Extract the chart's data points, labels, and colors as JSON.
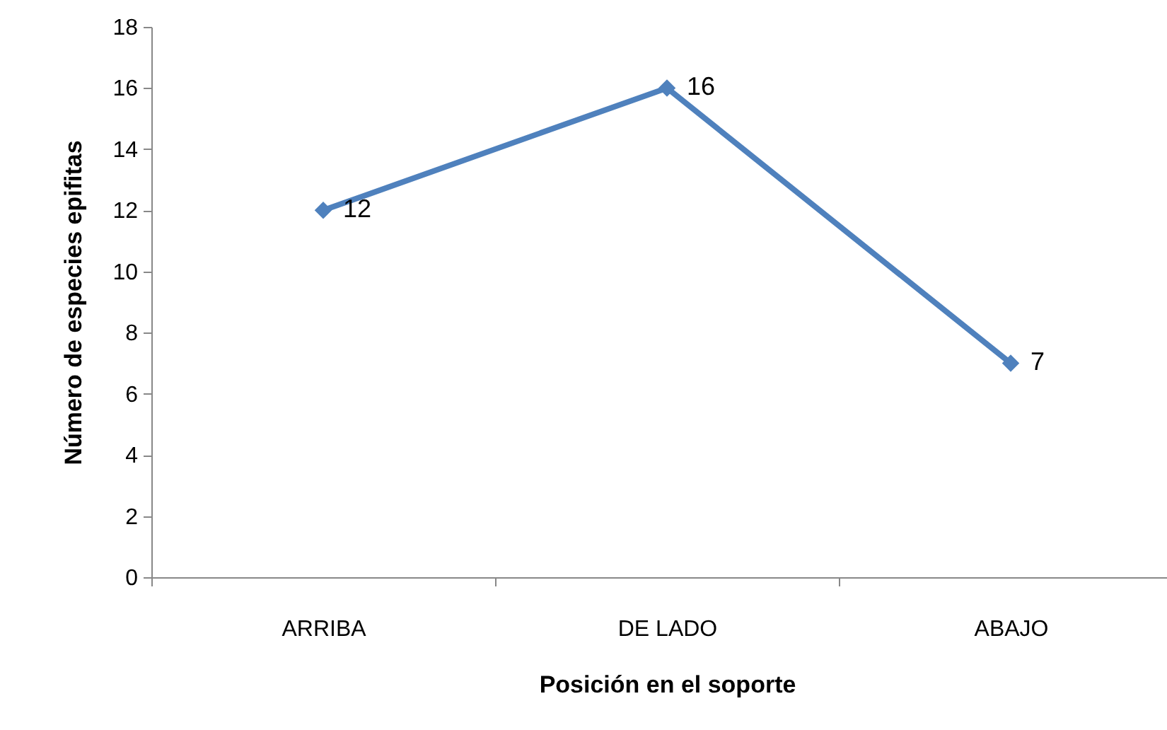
{
  "chart_data": {
    "type": "line",
    "xlabel": "Posición en el soporte",
    "ylabel": "Número de especies epifitas",
    "categories": [
      "ARRIBA",
      "DE LADO",
      "ABAJO"
    ],
    "series": [
      {
        "color": "#4f81bd",
        "values": [
          12,
          16,
          7
        ]
      }
    ],
    "ylim": [
      0,
      18
    ],
    "yticks": [
      0,
      2,
      4,
      6,
      8,
      10,
      12,
      14,
      16,
      18
    ],
    "grid": false,
    "marker": "diamond",
    "line_style": "solid",
    "data_labels": true
  }
}
